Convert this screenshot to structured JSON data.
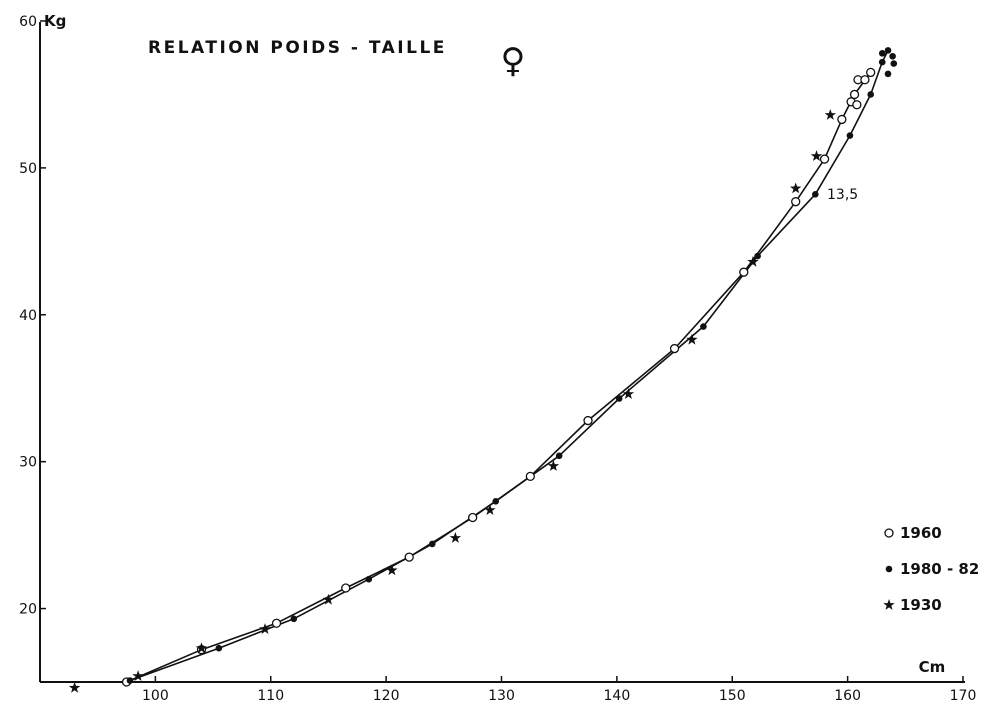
{
  "chart_data": {
    "type": "scatter",
    "title": "RELATION POIDS - TAILLE",
    "title_symbol": "♀",
    "xlabel": "Cm",
    "ylabel": "Kg",
    "xlim": [
      90,
      170
    ],
    "ylim": [
      15,
      60
    ],
    "x_ticks": [
      100,
      110,
      120,
      130,
      140,
      150,
      160,
      170
    ],
    "y_ticks": [
      20,
      30,
      40,
      50,
      60
    ],
    "grid": false,
    "legend_position": "right",
    "annotation": {
      "text": "13,5",
      "x": 158.6,
      "y": 48.2
    },
    "series": [
      {
        "name": "1960",
        "marker": "open-circle",
        "connected": true,
        "points": [
          [
            97.5,
            15.0
          ],
          [
            104.0,
            17.2
          ],
          [
            110.5,
            19.0
          ],
          [
            116.5,
            21.4
          ],
          [
            122.0,
            23.5
          ],
          [
            127.5,
            26.2
          ],
          [
            132.5,
            29.0
          ],
          [
            137.5,
            32.8
          ],
          [
            145.0,
            37.7
          ],
          [
            151.0,
            42.9
          ],
          [
            155.5,
            47.7
          ],
          [
            158.0,
            50.6
          ],
          [
            159.5,
            53.3
          ],
          [
            160.3,
            54.5
          ],
          [
            160.6,
            55.0
          ],
          [
            160.8,
            54.3
          ],
          [
            160.9,
            56.0
          ],
          [
            161.5,
            56.0
          ],
          [
            162.0,
            56.5
          ]
        ]
      },
      {
        "name": "1980 - 82",
        "marker": "filled-circle",
        "connected": true,
        "points": [
          [
            97.8,
            15.1
          ],
          [
            105.5,
            17.3
          ],
          [
            112.0,
            19.3
          ],
          [
            118.5,
            22.0
          ],
          [
            124.0,
            24.4
          ],
          [
            129.5,
            27.3
          ],
          [
            135.0,
            30.4
          ],
          [
            140.2,
            34.3
          ],
          [
            147.5,
            39.2
          ],
          [
            152.2,
            44.0
          ],
          [
            157.2,
            48.2
          ],
          [
            160.2,
            52.2
          ],
          [
            162.0,
            55.0
          ],
          [
            163.0,
            57.2
          ],
          [
            163.0,
            57.8
          ],
          [
            163.5,
            58.0
          ],
          [
            163.9,
            57.6
          ],
          [
            163.5,
            56.4
          ],
          [
            164.0,
            57.1
          ]
        ]
      },
      {
        "name": "1930",
        "marker": "star",
        "connected": false,
        "points": [
          [
            93.0,
            14.6
          ],
          [
            98.5,
            15.4
          ],
          [
            104.0,
            17.3
          ],
          [
            109.5,
            18.6
          ],
          [
            115.0,
            20.6
          ],
          [
            120.5,
            22.6
          ],
          [
            126.0,
            24.8
          ],
          [
            129.0,
            26.7
          ],
          [
            134.5,
            29.7
          ],
          [
            141.0,
            34.6
          ],
          [
            146.5,
            38.3
          ],
          [
            151.8,
            43.6
          ],
          [
            155.5,
            48.6
          ],
          [
            157.3,
            50.8
          ],
          [
            158.5,
            53.6
          ]
        ]
      }
    ]
  }
}
